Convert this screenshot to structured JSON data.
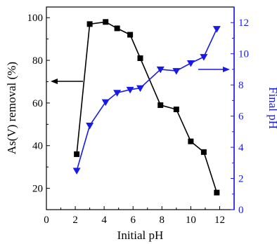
{
  "chart_data": {
    "type": "line",
    "xlabel": "Initial pH",
    "xlim": [
      0,
      13
    ],
    "xticks": [
      0,
      2,
      4,
      6,
      8,
      10,
      12
    ],
    "y_left": {
      "label": "As(V) removal (%)",
      "lim": [
        10,
        105
      ],
      "ticks": [
        20,
        40,
        60,
        80,
        100
      ],
      "color": "#000000"
    },
    "y_right": {
      "label": "Final pH",
      "lim": [
        0,
        13
      ],
      "ticks": [
        0,
        2,
        4,
        6,
        8,
        10,
        12
      ],
      "color": "#1a1ae6"
    },
    "series": [
      {
        "axis": "left",
        "marker": "square",
        "color": "#000000",
        "x": [
          2.1,
          3.0,
          4.1,
          4.9,
          5.8,
          6.5,
          7.9,
          9.0,
          10.0,
          10.9,
          11.8
        ],
        "y": [
          36,
          97,
          98,
          95,
          92,
          81,
          59,
          57,
          42,
          37,
          18
        ]
      },
      {
        "axis": "right",
        "marker": "triangle-down",
        "color": "#1a1ae6",
        "x": [
          2.1,
          3.0,
          4.1,
          4.9,
          5.8,
          6.5,
          7.9,
          9.0,
          10.0,
          10.9,
          11.8
        ],
        "y": [
          2.5,
          5.4,
          6.9,
          7.5,
          7.7,
          7.8,
          9.0,
          8.9,
          9.4,
          9.8,
          11.6
        ]
      }
    ],
    "annotations": [
      {
        "type": "arrow",
        "direction": "left",
        "refers_to": "left",
        "color": "#000000"
      },
      {
        "type": "arrow",
        "direction": "right",
        "refers_to": "right",
        "color": "#1a1ae6"
      }
    ]
  }
}
